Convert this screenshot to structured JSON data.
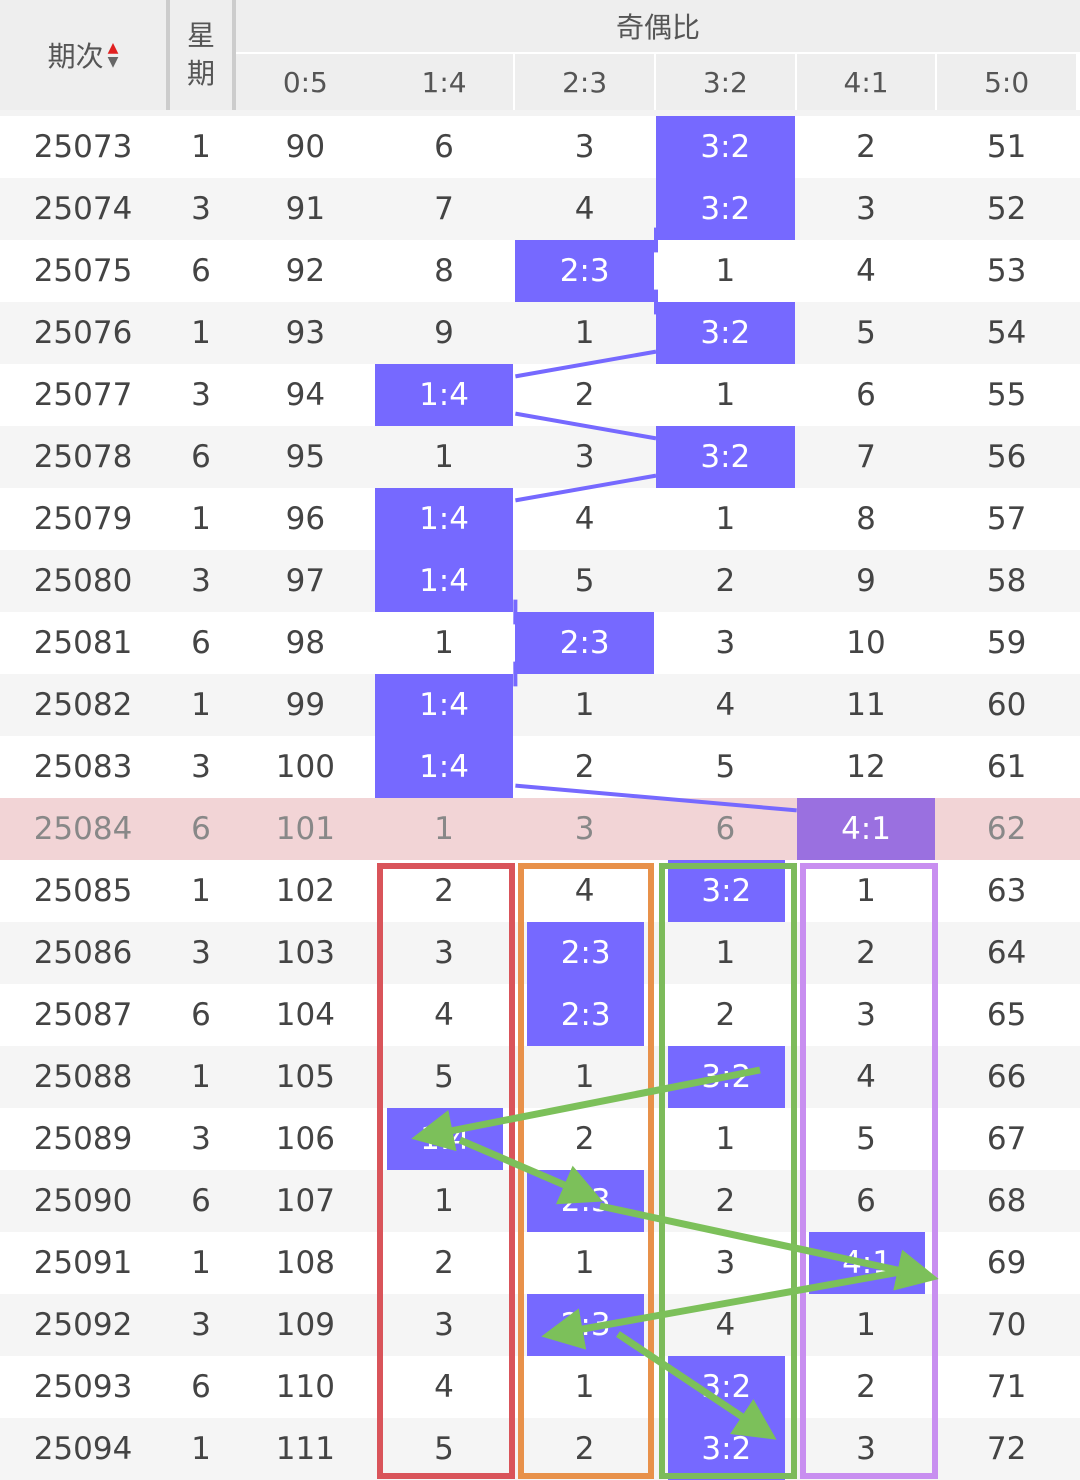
{
  "header": {
    "period_label": "期次",
    "weekday_label": "星期",
    "group_label": "奇偶比",
    "columns": [
      "0:5",
      "1:4",
      "2:3",
      "3:2",
      "4:1",
      "5:0"
    ]
  },
  "highlighted_row": 11,
  "rows": [
    {
      "period": "25073",
      "weekday": 1,
      "cells": [
        90,
        6,
        3,
        "3:2",
        2,
        51
      ]
    },
    {
      "period": "25074",
      "weekday": 3,
      "cells": [
        91,
        7,
        4,
        "3:2",
        3,
        52
      ]
    },
    {
      "period": "25075",
      "weekday": 6,
      "cells": [
        92,
        8,
        "2:3",
        1,
        4,
        53
      ]
    },
    {
      "period": "25076",
      "weekday": 1,
      "cells": [
        93,
        9,
        1,
        "3:2",
        5,
        54
      ]
    },
    {
      "period": "25077",
      "weekday": 3,
      "cells": [
        94,
        "1:4",
        2,
        1,
        6,
        55
      ]
    },
    {
      "period": "25078",
      "weekday": 6,
      "cells": [
        95,
        1,
        3,
        "3:2",
        7,
        56
      ]
    },
    {
      "period": "25079",
      "weekday": 1,
      "cells": [
        96,
        "1:4",
        4,
        1,
        8,
        57
      ]
    },
    {
      "period": "25080",
      "weekday": 3,
      "cells": [
        97,
        "1:4",
        5,
        2,
        9,
        58
      ]
    },
    {
      "period": "25081",
      "weekday": 6,
      "cells": [
        98,
        1,
        "2:3",
        3,
        10,
        59
      ]
    },
    {
      "period": "25082",
      "weekday": 1,
      "cells": [
        99,
        "1:4",
        1,
        4,
        11,
        60
      ]
    },
    {
      "period": "25083",
      "weekday": 3,
      "cells": [
        100,
        "1:4",
        2,
        5,
        12,
        61
      ]
    },
    {
      "period": "25084",
      "weekday": 6,
      "cells": [
        101,
        1,
        3,
        6,
        "4:1",
        62
      ]
    },
    {
      "period": "25085",
      "weekday": 1,
      "cells": [
        102,
        2,
        4,
        "3:2",
        1,
        63
      ]
    },
    {
      "period": "25086",
      "weekday": 3,
      "cells": [
        103,
        3,
        "2:3",
        1,
        2,
        64
      ]
    },
    {
      "period": "25087",
      "weekday": 6,
      "cells": [
        104,
        4,
        "2:3",
        2,
        3,
        65
      ]
    },
    {
      "period": "25088",
      "weekday": 1,
      "cells": [
        105,
        5,
        1,
        "3:2",
        4,
        66
      ]
    },
    {
      "period": "25089",
      "weekday": 3,
      "cells": [
        106,
        "1:4",
        2,
        1,
        5,
        67
      ]
    },
    {
      "period": "25090",
      "weekday": 6,
      "cells": [
        107,
        1,
        "2:3",
        2,
        6,
        68
      ]
    },
    {
      "period": "25091",
      "weekday": 1,
      "cells": [
        108,
        2,
        1,
        3,
        "4:1",
        69
      ]
    },
    {
      "period": "25092",
      "weekday": 3,
      "cells": [
        109,
        3,
        "2:3",
        4,
        1,
        70
      ]
    },
    {
      "period": "25093",
      "weekday": 6,
      "cells": [
        110,
        4,
        1,
        "3:2",
        2,
        71
      ]
    },
    {
      "period": "25094",
      "weekday": 1,
      "cells": [
        111,
        5,
        2,
        "3:2",
        3,
        72
      ]
    }
  ]
}
